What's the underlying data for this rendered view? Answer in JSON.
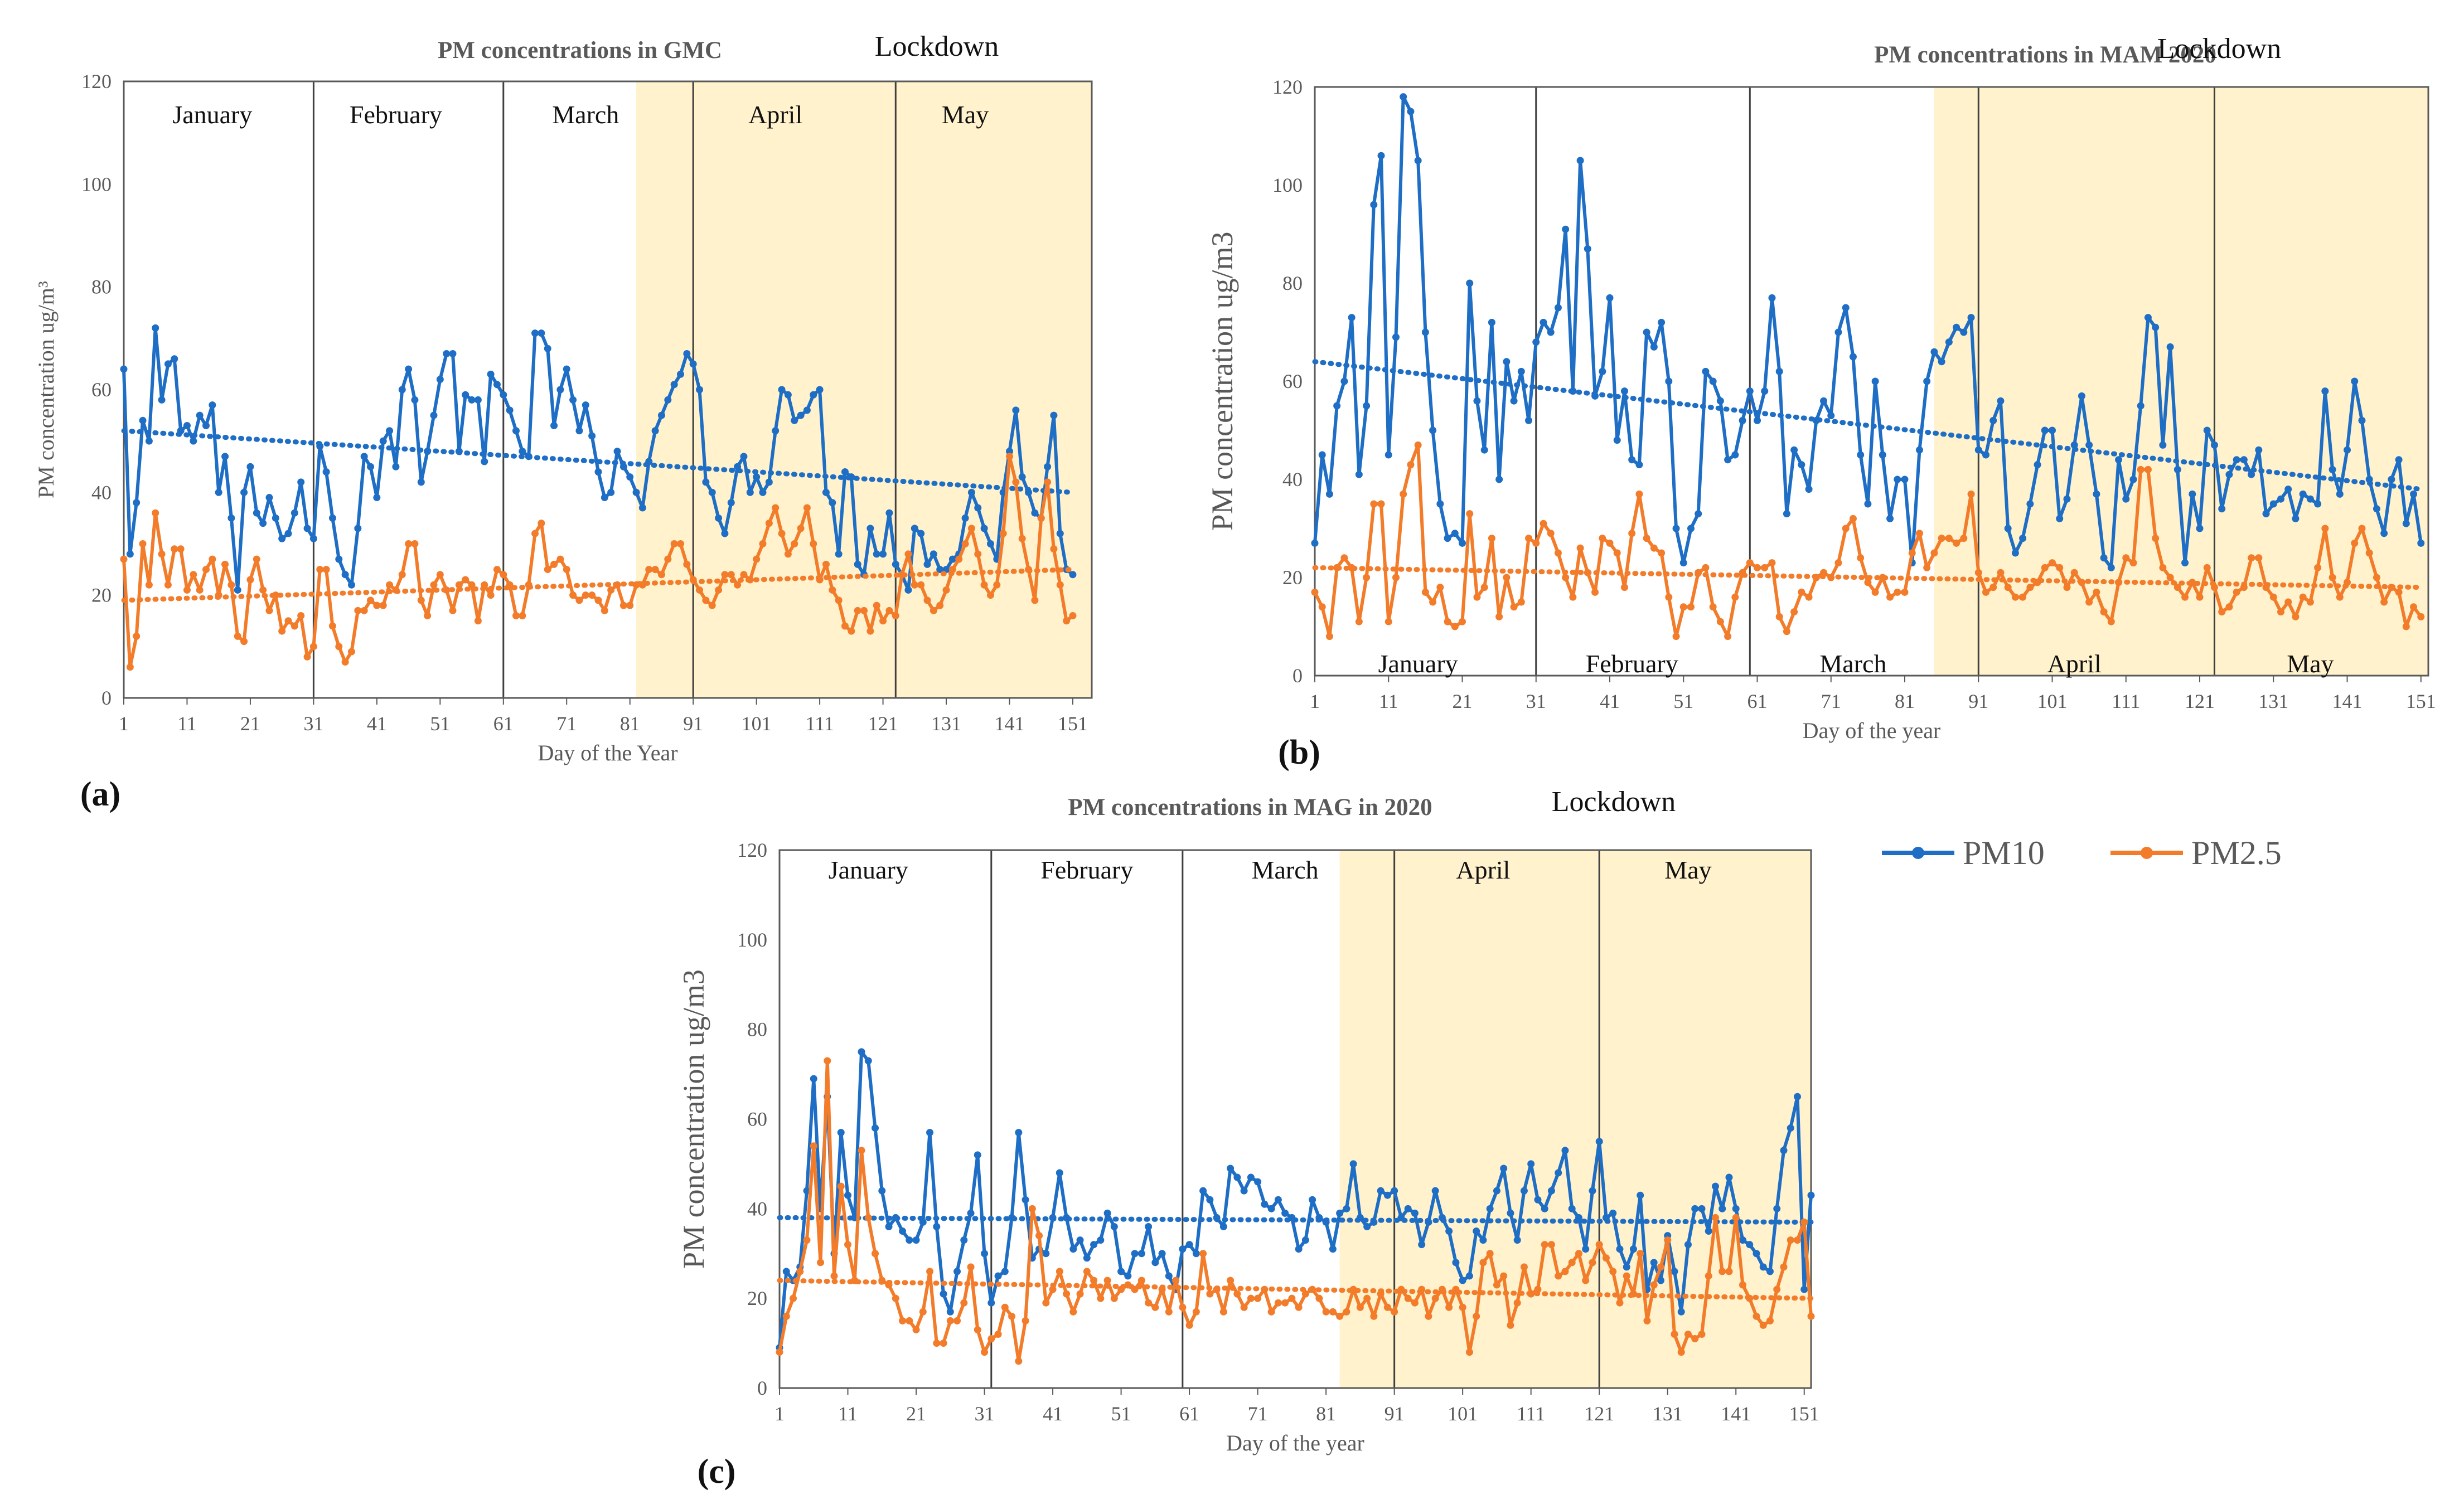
{
  "colors": {
    "pm10": "#1f6ec5",
    "pm25": "#f27c2a",
    "lockdown_fill": "#fff2cc",
    "frame": "#595959",
    "month_line": "#404040"
  },
  "legend": {
    "position": "right",
    "entries": [
      {
        "name": "PM10",
        "color": "#1f6ec5"
      },
      {
        "name": "PM2.5",
        "color": "#f27c2a"
      }
    ]
  },
  "chart_data": [
    {
      "id": "a",
      "type": "line",
      "panel_label": "(a)",
      "title": "PM concentrations  in GMC",
      "lockdown_label": "Lockdown",
      "xlabel": "Day of the Year",
      "ylabel": "PM concentration ug/m³",
      "xlim": [
        1,
        154
      ],
      "ylim": [
        0,
        120
      ],
      "yticks": [
        0,
        20,
        40,
        60,
        80,
        100,
        120
      ],
      "xticks": [
        1,
        11,
        21,
        31,
        41,
        51,
        61,
        71,
        81,
        91,
        101,
        111,
        121,
        131,
        141,
        151
      ],
      "grid": false,
      "month_positions": "top",
      "lockdown_start": 82,
      "month_boundaries": [
        31,
        61,
        91,
        123
      ],
      "months": [
        {
          "label": "January",
          "center": 15
        },
        {
          "label": "February",
          "center": 44
        },
        {
          "label": "March",
          "center": 74
        },
        {
          "label": "April",
          "center": 104
        },
        {
          "label": "May",
          "center": 134
        }
      ],
      "series": [
        {
          "name": "PM10",
          "trend": [
            52,
            40
          ],
          "values": [
            64,
            28,
            38,
            54,
            50,
            72,
            58,
            65,
            66,
            52,
            53,
            50,
            55,
            53,
            57,
            40,
            47,
            35,
            21,
            40,
            45,
            36,
            34,
            39,
            35,
            31,
            32,
            36,
            42,
            33,
            31,
            49,
            44,
            35,
            27,
            24,
            22,
            33,
            47,
            45,
            39,
            50,
            52,
            45,
            60,
            64,
            58,
            42,
            48,
            55,
            62,
            67,
            67,
            48,
            59,
            58,
            58,
            46,
            63,
            61,
            59,
            56,
            52,
            48,
            47,
            71,
            71,
            68,
            53,
            60,
            64,
            58,
            52,
            57,
            51,
            44,
            39,
            40,
            48,
            45,
            43,
            40,
            37,
            46,
            52,
            55,
            58,
            61,
            63,
            67,
            65,
            60,
            42,
            40,
            35,
            32,
            38,
            45,
            47,
            40,
            43,
            40,
            42,
            52,
            60,
            59,
            54,
            55,
            56,
            59,
            60,
            40,
            38,
            28,
            44,
            43,
            26,
            24,
            33,
            28,
            28,
            36,
            26,
            24,
            21,
            33,
            32,
            26,
            28,
            25,
            25,
            27,
            28,
            35,
            40,
            37,
            33,
            30,
            27,
            40,
            48,
            56,
            43,
            40,
            36,
            35,
            45,
            55,
            32,
            25,
            24
          ]
        },
        {
          "name": "PM2.5",
          "trend": [
            19,
            25
          ],
          "values": [
            27,
            6,
            12,
            30,
            22,
            36,
            28,
            22,
            29,
            29,
            21,
            24,
            21,
            25,
            27,
            20,
            26,
            22,
            12,
            11,
            23,
            27,
            21,
            17,
            20,
            13,
            15,
            14,
            16,
            8,
            10,
            25,
            25,
            14,
            10,
            7,
            9,
            17,
            17,
            19,
            18,
            18,
            22,
            21,
            24,
            30,
            30,
            19,
            16,
            22,
            24,
            21,
            17,
            22,
            23,
            22,
            15,
            22,
            20,
            25,
            24,
            22,
            16,
            16,
            22,
            32,
            34,
            25,
            26,
            27,
            25,
            20,
            19,
            20,
            20,
            19,
            17,
            21,
            22,
            18,
            18,
            22,
            22,
            25,
            25,
            24,
            27,
            30,
            30,
            26,
            23,
            21,
            19,
            18,
            21,
            24,
            24,
            22,
            24,
            23,
            27,
            30,
            34,
            37,
            32,
            28,
            30,
            33,
            37,
            30,
            23,
            26,
            21,
            19,
            14,
            13,
            17,
            17,
            13,
            18,
            15,
            17,
            16,
            24,
            28,
            22,
            22,
            19,
            17,
            18,
            21,
            25,
            27,
            30,
            33,
            28,
            22,
            20,
            22,
            32,
            47,
            42,
            31,
            25,
            19,
            35,
            42,
            29,
            22,
            15,
            16
          ]
        }
      ]
    },
    {
      "id": "b",
      "type": "line",
      "panel_label": "(b)",
      "title": "PM concentrations  in MAM 2020",
      "lockdown_label": "Lockdown",
      "xlabel": "Day of the year",
      "ylabel": "PM concentration ug/m3",
      "xlim": [
        1,
        152
      ],
      "ylim": [
        0,
        120
      ],
      "yticks": [
        0,
        20,
        40,
        60,
        80,
        100,
        120
      ],
      "xticks": [
        1,
        11,
        21,
        31,
        41,
        51,
        61,
        71,
        81,
        91,
        101,
        111,
        121,
        131,
        141,
        151
      ],
      "grid": false,
      "month_positions": "bottom",
      "lockdown_start": 85,
      "month_boundaries": [
        31,
        60,
        91,
        123
      ],
      "months": [
        {
          "label": "January",
          "center": 15
        },
        {
          "label": "February",
          "center": 44
        },
        {
          "label": "March",
          "center": 74
        },
        {
          "label": "April",
          "center": 104
        },
        {
          "label": "May",
          "center": 136
        }
      ],
      "series": [
        {
          "name": "PM10",
          "trend": [
            64,
            38
          ],
          "values": [
            27,
            45,
            37,
            55,
            60,
            73,
            41,
            55,
            96,
            106,
            45,
            69,
            118,
            115,
            105,
            70,
            50,
            35,
            28,
            29,
            27,
            80,
            56,
            46,
            72,
            40,
            64,
            56,
            62,
            52,
            68,
            72,
            70,
            75,
            91,
            58,
            105,
            87,
            57,
            62,
            77,
            48,
            58,
            44,
            43,
            70,
            67,
            72,
            60,
            30,
            23,
            30,
            33,
            62,
            60,
            56,
            44,
            45,
            52,
            58,
            52,
            58,
            77,
            62,
            33,
            46,
            43,
            38,
            52,
            56,
            53,
            70,
            75,
            65,
            45,
            35,
            60,
            45,
            32,
            40,
            40,
            23,
            46,
            60,
            66,
            64,
            68,
            71,
            70,
            73,
            46,
            45,
            52,
            56,
            30,
            25,
            28,
            35,
            43,
            50,
            50,
            32,
            36,
            47,
            57,
            47,
            37,
            24,
            22,
            44,
            36,
            40,
            55,
            73,
            71,
            47,
            67,
            42,
            23,
            37,
            30,
            50,
            47,
            34,
            41,
            44,
            44,
            41,
            46,
            33,
            35,
            36,
            38,
            32,
            37,
            36,
            35,
            58,
            42,
            37,
            46,
            60,
            52,
            40,
            34,
            29,
            40,
            44,
            31,
            37,
            27
          ]
        },
        {
          "name": "PM2.5",
          "trend": [
            22,
            18
          ],
          "values": [
            17,
            14,
            8,
            22,
            24,
            22,
            11,
            20,
            35,
            35,
            11,
            20,
            37,
            43,
            47,
            17,
            15,
            18,
            11,
            10,
            11,
            33,
            16,
            18,
            28,
            12,
            20,
            14,
            15,
            28,
            27,
            31,
            29,
            25,
            20,
            16,
            26,
            21,
            17,
            28,
            27,
            25,
            18,
            29,
            37,
            28,
            26,
            25,
            16,
            8,
            14,
            14,
            21,
            22,
            14,
            11,
            8,
            16,
            21,
            23,
            22,
            22,
            23,
            12,
            9,
            13,
            17,
            16,
            20,
            21,
            20,
            23,
            30,
            32,
            24,
            19,
            17,
            20,
            16,
            17,
            17,
            25,
            29,
            22,
            25,
            28,
            28,
            27,
            28,
            37,
            21,
            17,
            18,
            21,
            18,
            16,
            16,
            18,
            19,
            22,
            23,
            22,
            18,
            21,
            19,
            15,
            17,
            13,
            11,
            19,
            24,
            23,
            42,
            42,
            28,
            22,
            20,
            18,
            16,
            19,
            16,
            22,
            18,
            13,
            14,
            17,
            18,
            24,
            24,
            18,
            16,
            13,
            15,
            12,
            16,
            15,
            22,
            30,
            20,
            16,
            19,
            27,
            30,
            25,
            20,
            15,
            18,
            17,
            10,
            14,
            12
          ]
        }
      ]
    },
    {
      "id": "c",
      "type": "line",
      "panel_label": "(c)",
      "title": "PM concentrations  in MAG in 2020",
      "lockdown_label": "Lockdown",
      "xlabel": "Day of the year",
      "ylabel": "PM concentration ug/m3",
      "xlim": [
        1,
        152
      ],
      "ylim": [
        0,
        120
      ],
      "yticks": [
        0,
        20,
        40,
        60,
        80,
        100,
        120
      ],
      "xticks": [
        1,
        11,
        21,
        31,
        41,
        51,
        61,
        71,
        81,
        91,
        101,
        111,
        121,
        131,
        141,
        151
      ],
      "grid": false,
      "month_positions": "top",
      "lockdown_start": 83,
      "month_boundaries": [
        32,
        60,
        91,
        121
      ],
      "months": [
        {
          "label": "January",
          "center": 14
        },
        {
          "label": "February",
          "center": 46
        },
        {
          "label": "March",
          "center": 75
        },
        {
          "label": "April",
          "center": 104
        },
        {
          "label": "May",
          "center": 134
        }
      ],
      "series": [
        {
          "name": "PM10",
          "trend": [
            38,
            37
          ],
          "values": [
            9,
            26,
            24,
            27,
            44,
            69,
            40,
            65,
            30,
            57,
            43,
            38,
            75,
            73,
            58,
            44,
            36,
            38,
            35,
            33,
            33,
            37,
            57,
            36,
            21,
            17,
            26,
            33,
            39,
            52,
            30,
            19,
            25,
            26,
            38,
            57,
            42,
            29,
            31,
            30,
            38,
            48,
            38,
            31,
            33,
            29,
            32,
            33,
            39,
            36,
            26,
            25,
            30,
            30,
            36,
            28,
            30,
            25,
            22,
            31,
            32,
            30,
            44,
            42,
            38,
            36,
            49,
            47,
            44,
            47,
            46,
            41,
            40,
            42,
            39,
            38,
            31,
            33,
            42,
            38,
            37,
            31,
            39,
            40,
            50,
            38,
            36,
            37,
            44,
            43,
            44,
            38,
            40,
            39,
            32,
            37,
            44,
            38,
            35,
            28,
            24,
            25,
            35,
            33,
            40,
            44,
            49,
            39,
            33,
            44,
            50,
            42,
            40,
            44,
            48,
            53,
            40,
            38,
            31,
            44,
            55,
            38,
            39,
            31,
            27,
            31,
            43,
            22,
            28,
            24,
            34,
            26,
            17,
            32,
            40,
            40,
            35,
            45,
            40,
            47,
            40,
            33,
            32,
            30,
            27,
            26,
            40,
            53,
            58,
            65,
            22,
            43
          ]
        },
        {
          "name": "PM2.5",
          "trend": [
            24,
            20
          ],
          "values": [
            8,
            16,
            20,
            26,
            33,
            54,
            28,
            73,
            25,
            45,
            32,
            24,
            53,
            38,
            30,
            24,
            23,
            20,
            15,
            15,
            13,
            17,
            26,
            10,
            10,
            15,
            15,
            19,
            27,
            13,
            8,
            11,
            12,
            18,
            16,
            6,
            15,
            40,
            34,
            19,
            22,
            26,
            21,
            17,
            21,
            26,
            24,
            20,
            24,
            20,
            22,
            23,
            22,
            24,
            19,
            18,
            22,
            17,
            24,
            18,
            14,
            17,
            30,
            21,
            22,
            17,
            24,
            21,
            18,
            20,
            20,
            22,
            17,
            19,
            19,
            20,
            18,
            21,
            22,
            20,
            17,
            17,
            16,
            17,
            22,
            18,
            20,
            16,
            21,
            18,
            17,
            22,
            20,
            19,
            22,
            16,
            20,
            22,
            18,
            22,
            18,
            8,
            16,
            28,
            30,
            23,
            25,
            14,
            19,
            27,
            21,
            22,
            32,
            32,
            25,
            26,
            28,
            30,
            24,
            28,
            32,
            29,
            26,
            19,
            25,
            21,
            30,
            15,
            23,
            27,
            33,
            12,
            8,
            12,
            11,
            12,
            25,
            38,
            26,
            26,
            38,
            23,
            20,
            16,
            14,
            15,
            22,
            27,
            33,
            33,
            37,
            16
          ]
        }
      ]
    }
  ]
}
